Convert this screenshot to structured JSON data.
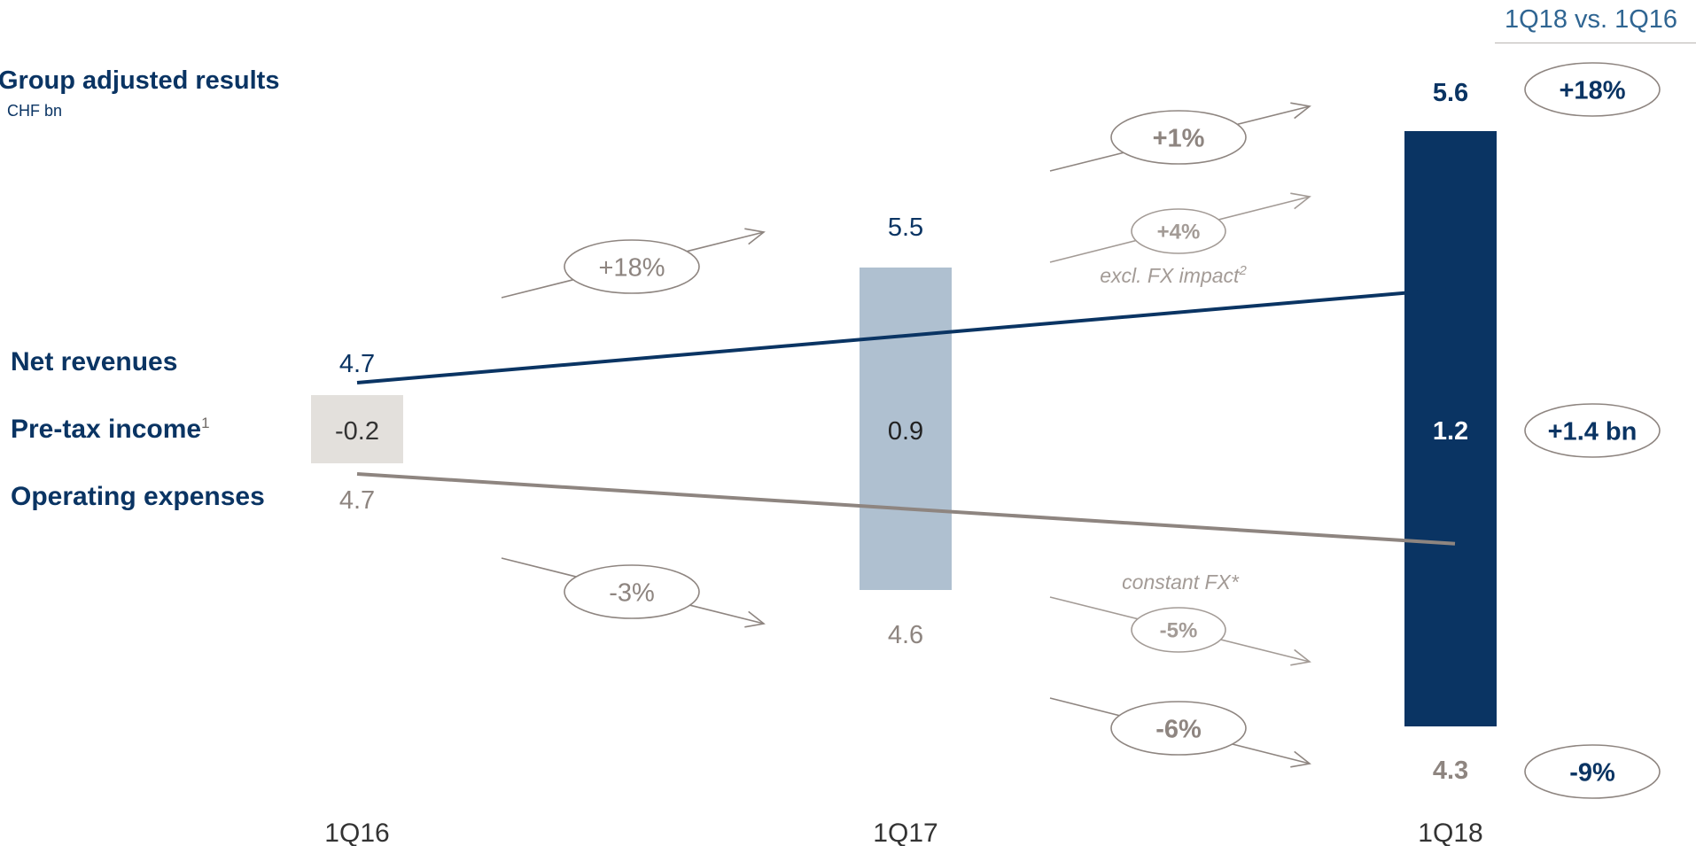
{
  "chart_data": {
    "type": "bar",
    "title": "Group adjusted results",
    "unit": "CHF bn",
    "categories": [
      "1Q16",
      "1Q17",
      "1Q18"
    ],
    "series": [
      {
        "name": "Net revenues",
        "values": [
          4.7,
          5.5,
          5.6
        ],
        "value_labels": [
          "4.7",
          "5.5",
          "5.6"
        ]
      },
      {
        "name": "Pre-tax income",
        "name_footnote": "1",
        "values": [
          -0.2,
          0.9,
          1.2
        ],
        "value_labels": [
          "-0.2",
          "0.9",
          "1.2"
        ]
      },
      {
        "name": "Operating expenses",
        "values": [
          4.7,
          4.6,
          4.3
        ],
        "value_labels": [
          "4.7",
          "4.6",
          "4.3"
        ]
      }
    ],
    "comparison_header": "1Q18 vs. 1Q16",
    "comparison_badges": [
      "+18%",
      "+1.4 bn",
      "-9%"
    ],
    "change_annotations": {
      "revenues_1Q16_1Q17": "+18%",
      "revenues_1Q17_1Q18": "+1%",
      "revenues_1Q17_1Q18_excl_fx": "+4%",
      "revenues_excl_fx_label": "excl. FX impact",
      "revenues_excl_fx_footnote": "2",
      "expenses_1Q16_1Q17": "-3%",
      "expenses_1Q17_1Q18": "-6%",
      "expenses_1Q17_1Q18_constant_fx": "-5%",
      "expenses_constant_fx_label": "constant FX*"
    },
    "colors": {
      "navy": "#0a3463",
      "taupe": "#8e8580",
      "light_blue": "#afc0d0",
      "light_gray": "#e3e0dc",
      "muted": "#a39b96"
    }
  }
}
